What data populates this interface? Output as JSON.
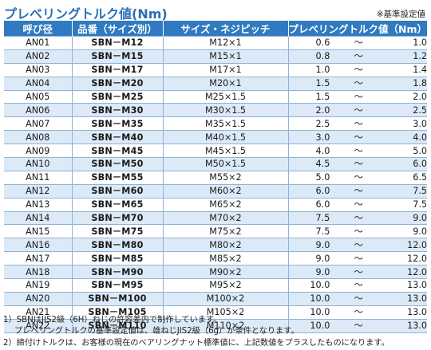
{
  "title": "プレベリングトルク値(Nm)",
  "note": "※基準設定値",
  "headers": {
    "call": "呼び径",
    "product": "品番（サイズ別）",
    "size": "サイズ・ネジピッチ",
    "torque": "プレベリングトルク値（Nm）"
  },
  "rows": [
    {
      "call": "AN01",
      "product": "SBN－M12",
      "size": "M12×1",
      "min": "0.6",
      "sep": "～",
      "max": "1.0"
    },
    {
      "call": "AN02",
      "product": "SBN－M15",
      "size": "M15×1",
      "min": "0.8",
      "sep": "～",
      "max": "1.2"
    },
    {
      "call": "AN03",
      "product": "SBN－M17",
      "size": "M17×1",
      "min": "1.0",
      "sep": "～",
      "max": "1.4"
    },
    {
      "call": "AN04",
      "product": "SBN－M20",
      "size": "M20×1",
      "min": "1.5",
      "sep": "～",
      "max": "1.8"
    },
    {
      "call": "AN05",
      "product": "SBN－M25",
      "size": "M25×1.5",
      "min": "1.5",
      "sep": "～",
      "max": "2.0"
    },
    {
      "call": "AN06",
      "product": "SBN－M30",
      "size": "M30×1.5",
      "min": "2.0",
      "sep": "～",
      "max": "2.5"
    },
    {
      "call": "AN07",
      "product": "SBN－M35",
      "size": "M35×1.5",
      "min": "2.5",
      "sep": "～",
      "max": "3.0"
    },
    {
      "call": "AN08",
      "product": "SBN－M40",
      "size": "M40×1.5",
      "min": "3.0",
      "sep": "～",
      "max": "4.0"
    },
    {
      "call": "AN09",
      "product": "SBN－M45",
      "size": "M45×1.5",
      "min": "4.0",
      "sep": "～",
      "max": "5.0"
    },
    {
      "call": "AN10",
      "product": "SBN－M50",
      "size": "M50×1.5",
      "min": "4.5",
      "sep": "～",
      "max": "6.0"
    },
    {
      "call": "AN11",
      "product": "SBN－M55",
      "size": "M55×2",
      "min": "5.0",
      "sep": "～",
      "max": "6.5"
    },
    {
      "call": "AN12",
      "product": "SBN－M60",
      "size": "M60×2",
      "min": "6.0",
      "sep": "～",
      "max": "7.5"
    },
    {
      "call": "AN13",
      "product": "SBN－M65",
      "size": "M65×2",
      "min": "6.0",
      "sep": "～",
      "max": "7.5"
    },
    {
      "call": "AN14",
      "product": "SBN－M70",
      "size": "M70×2",
      "min": "7.5",
      "sep": "～",
      "max": "9.0"
    },
    {
      "call": "AN15",
      "product": "SBN－M75",
      "size": "M75×2",
      "min": "7.5",
      "sep": "～",
      "max": "9.0"
    },
    {
      "call": "AN16",
      "product": "SBN－M80",
      "size": "M80×2",
      "min": "9.0",
      "sep": "～",
      "max": "12.0"
    },
    {
      "call": "AN17",
      "product": "SBN－M85",
      "size": "M85×2",
      "min": "9.0",
      "sep": "～",
      "max": "12.0"
    },
    {
      "call": "AN18",
      "product": "SBN－M90",
      "size": "M90×2",
      "min": "9.0",
      "sep": "～",
      "max": "12.0"
    },
    {
      "call": "AN19",
      "product": "SBN－M95",
      "size": "M95×2",
      "min": "10.0",
      "sep": "～",
      "max": "13.0"
    },
    {
      "call": "AN20",
      "product": "SBN－M100",
      "size": "M100×2",
      "min": "10.0",
      "sep": "～",
      "max": "13.0"
    },
    {
      "call": "AN21",
      "product": "SBN－M105",
      "size": "M105×2",
      "min": "10.0",
      "sep": "～",
      "max": "13.0"
    },
    {
      "call": "AN22",
      "product": "SBN－M110",
      "size": "M110×2",
      "min": "10.0",
      "sep": "～",
      "max": "13.0"
    }
  ],
  "footnotes": {
    "f1": "1）SBNはJIS2級（6H）ねじの許容差内で制作しています。",
    "f2": "プレベリングトルクの基準設定値は、雄ねじJIS2級（6g）が条件となります。",
    "f3": "2）締付けトルクは、お客様の現在のベアリングナット標準値に、上記数値をプラスしたものになります。"
  }
}
